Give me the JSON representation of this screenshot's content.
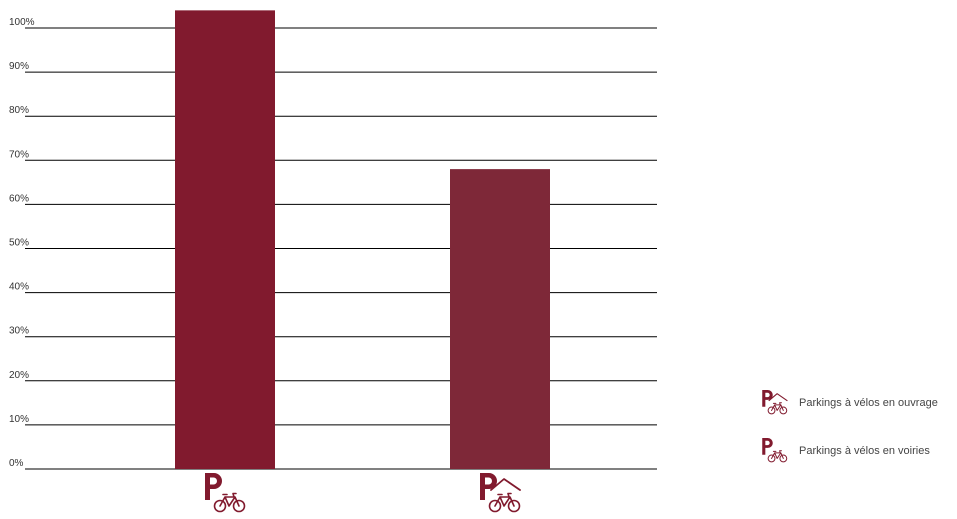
{
  "chart_data": {
    "type": "bar",
    "categories": [
      "Parkings à vélos en voiries",
      "Parkings à vélos en ouvrage"
    ],
    "category_icons": [
      "bike-parking-street-icon",
      "bike-parking-covered-icon"
    ],
    "series": [
      {
        "values": [
          104,
          68
        ]
      }
    ],
    "bar_colors": [
      "#811a2e",
      "#7e2838"
    ],
    "ylim": [
      0,
      100
    ],
    "yticks": [
      0,
      10,
      20,
      30,
      40,
      50,
      60,
      70,
      80,
      90,
      100
    ],
    "ytick_labels": [
      "0%",
      "10%",
      "20%",
      "30%",
      "40%",
      "50%",
      "60%",
      "70%",
      "80%",
      "90%",
      "100%"
    ],
    "grid": true,
    "legend_position": "right",
    "legend": [
      {
        "label": "Parkings à vélos en ouvrage",
        "icon": "bike-parking-covered-icon"
      },
      {
        "label": "Parkings à vélos en voiries",
        "icon": "bike-parking-street-icon"
      }
    ],
    "title": "",
    "xlabel": "",
    "ylabel": ""
  }
}
